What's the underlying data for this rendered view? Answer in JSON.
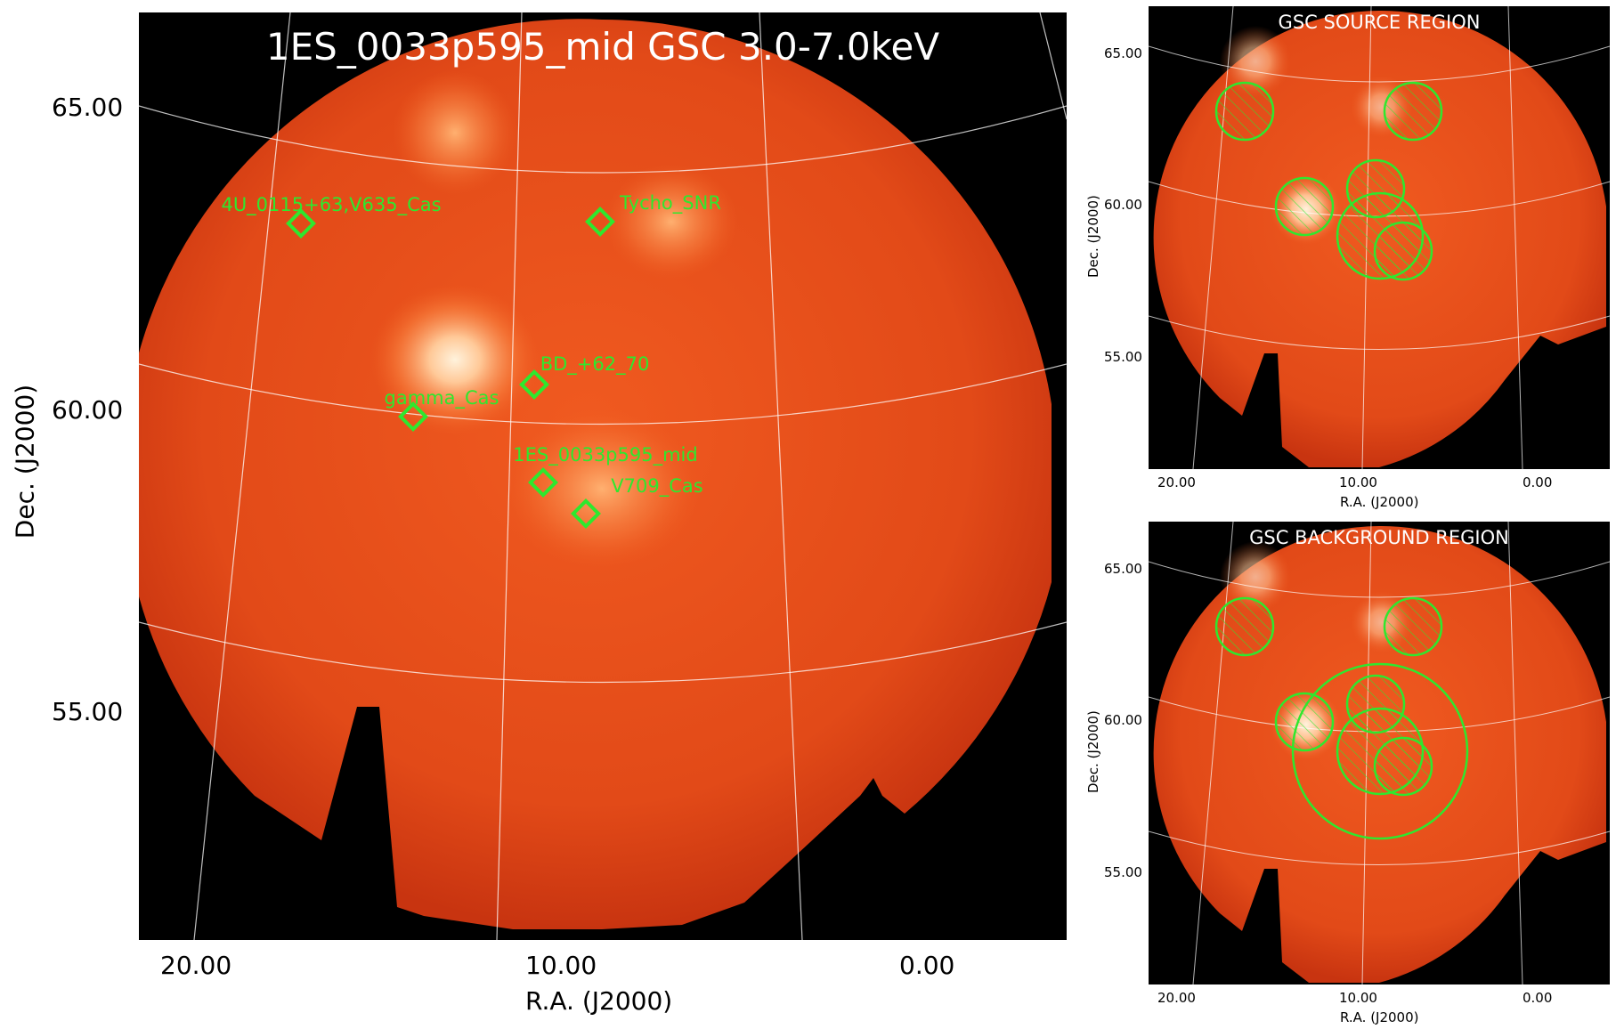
{
  "main": {
    "title": "1ES_0033p595_mid GSC 3.0-7.0keV",
    "sources": [
      "4U_0115+63,V635_Cas",
      "Tycho_SNR",
      "BD_+62_70",
      "gamma_Cas",
      "1ES_0033p595_mid",
      "V709_Cas"
    ],
    "ra_ticks": [
      "20.00",
      "10.00",
      "0.00"
    ],
    "dec_ticks": [
      "65.00",
      "60.00",
      "55.00"
    ],
    "xlabel": "R.A. (J2000)",
    "ylabel": "Dec. (J2000)"
  },
  "source_region": {
    "title": "GSC SOURCE REGION",
    "ra_ticks": [
      "20.00",
      "10.00",
      "0.00"
    ],
    "dec_ticks": [
      "65.00",
      "60.00",
      "55.00"
    ],
    "xlabel": "R.A. (J2000)",
    "ylabel": "Dec. (J2000)"
  },
  "background_region": {
    "title": "GSC BACKGROUND REGION",
    "ra_ticks": [
      "20.00",
      "10.00",
      "0.00"
    ],
    "dec_ticks": [
      "65.00",
      "60.00",
      "55.00"
    ],
    "xlabel": "R.A. (J2000)",
    "ylabel": "Dec. (J2000)"
  },
  "colors": {
    "marker": "#2ee82e",
    "field": "#e8501c",
    "background": "#000000"
  }
}
